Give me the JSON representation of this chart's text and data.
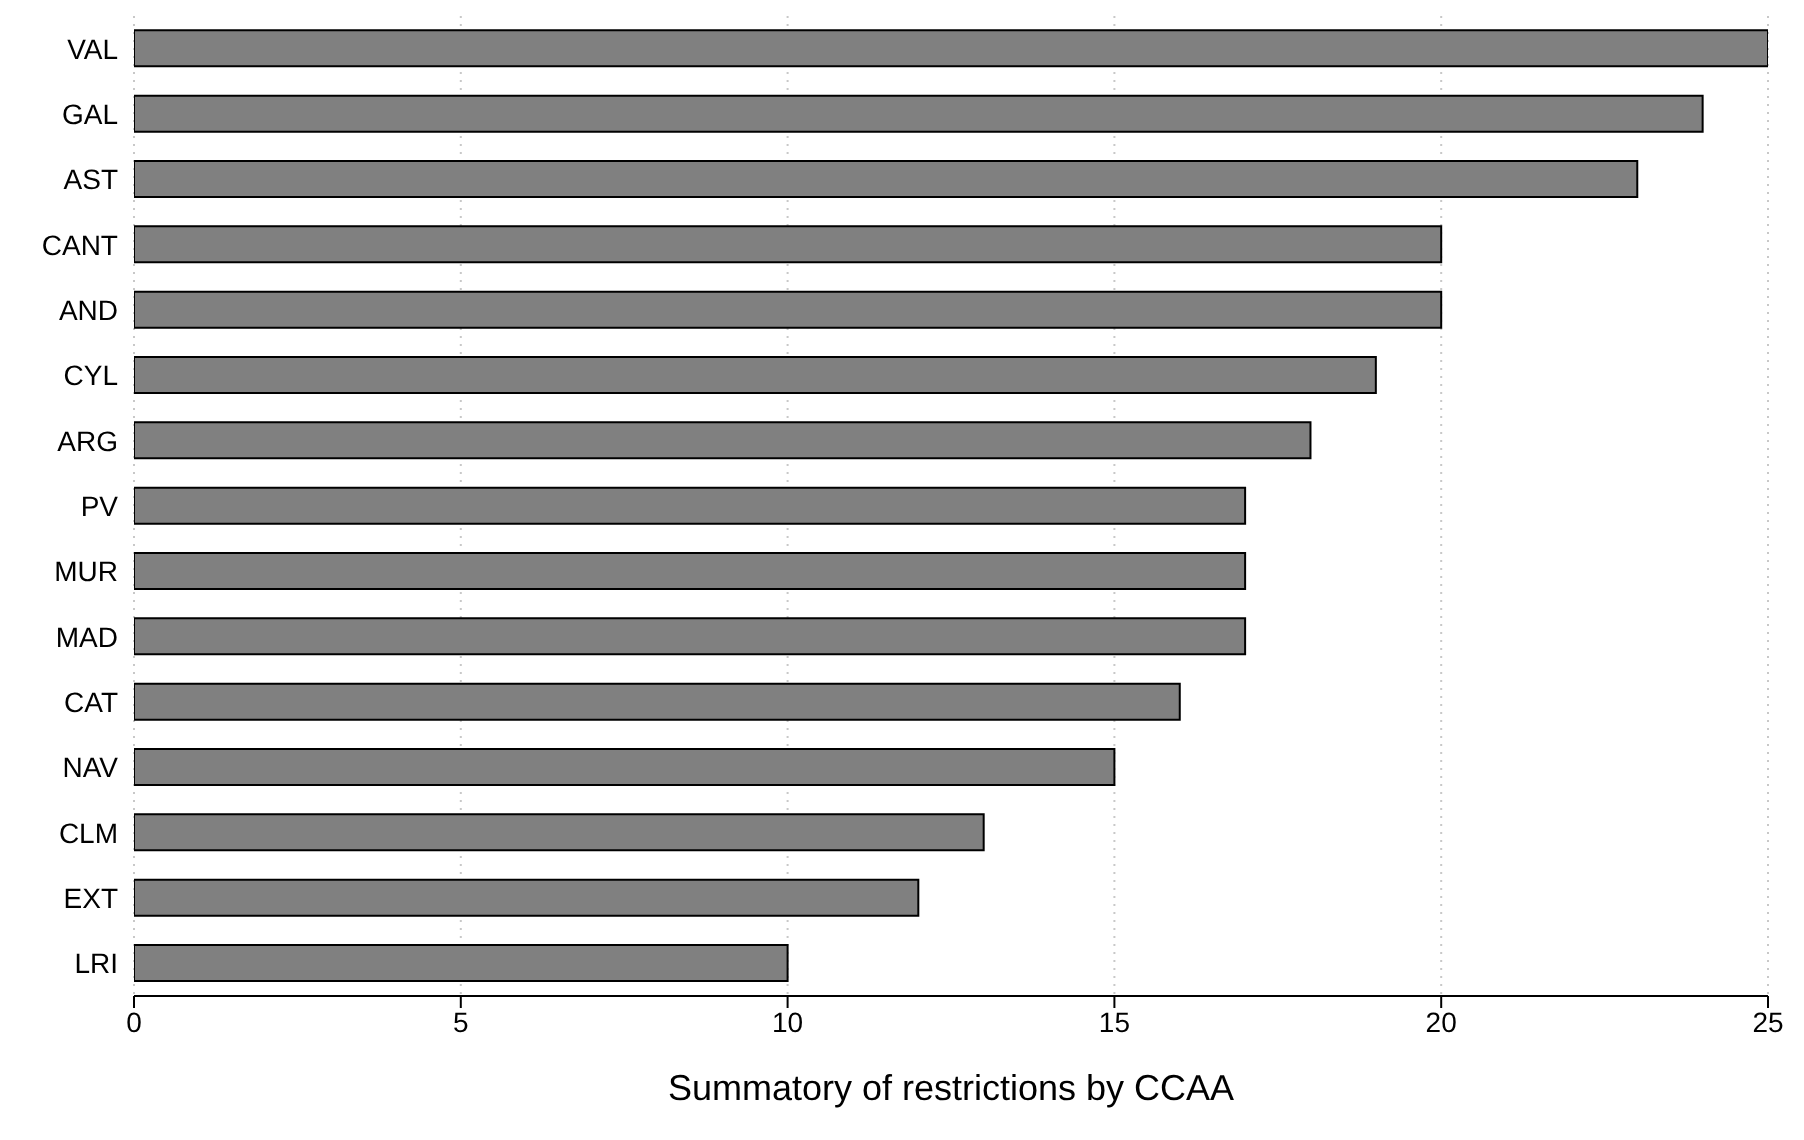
{
  "chart_data": {
    "type": "bar",
    "orientation": "horizontal",
    "xlabel": "Summatory of restrictions by CCAA",
    "categories": [
      "VAL",
      "GAL",
      "AST",
      "CANT",
      "AND",
      "CYL",
      "ARG",
      "PV",
      "MUR",
      "MAD",
      "CAT",
      "NAV",
      "CLM",
      "EXT",
      "LRI"
    ],
    "values": [
      25,
      24,
      23,
      20,
      20,
      19,
      18,
      17,
      17,
      17,
      16,
      15,
      13,
      12,
      10
    ],
    "color": "#808080",
    "xlim": [
      0,
      25
    ],
    "xticks": [
      0,
      5,
      10,
      15,
      20,
      25
    ],
    "grid": "x"
  }
}
